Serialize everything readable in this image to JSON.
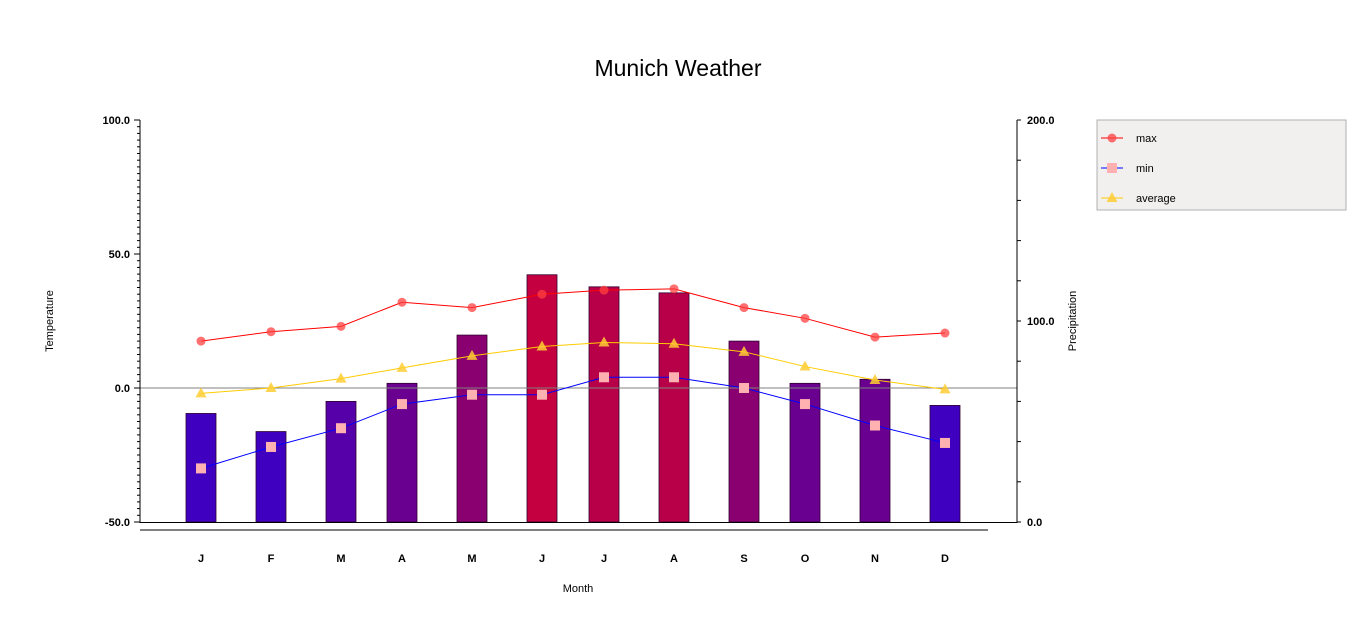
{
  "chart_data": {
    "type": "bar",
    "title": "Munich Weather",
    "xlabel": "Month",
    "ylabel": "Temperature",
    "y2label": "Precipitation",
    "categories": [
      "J",
      "F",
      "M",
      "A",
      "M",
      "J",
      "J",
      "A",
      "S",
      "O",
      "N",
      "D"
    ],
    "ylim": [
      -50,
      100
    ],
    "y2lim": [
      0,
      200
    ],
    "y_ticks": [
      "100.0",
      "50.0",
      "0.0",
      "-50.0"
    ],
    "y2_ticks": [
      "200.0",
      "100.0",
      "0.0"
    ],
    "zero_line": true,
    "legend_position": "right",
    "bars": {
      "axis": "secondary",
      "values": [
        54,
        45,
        60,
        69,
        93,
        123,
        117,
        114,
        90,
        69,
        71,
        58
      ],
      "colors": [
        "#3f00c0",
        "#3f00c0",
        "#5500a8",
        "#6a0090",
        "#8a0070",
        "#c40040",
        "#b80048",
        "#b80048",
        "#8a0070",
        "#6a0090",
        "#6a0090",
        "#3f00c0"
      ]
    },
    "series": [
      {
        "name": "max",
        "color": "#ff0000",
        "marker": "circle",
        "values": [
          17.5,
          21,
          23,
          32,
          30,
          35,
          36.5,
          37,
          30,
          26,
          19,
          20.5
        ]
      },
      {
        "name": "min",
        "color": "#0000ff",
        "marker": "square",
        "values": [
          -30,
          -22,
          -15,
          -6,
          -2.5,
          -2.5,
          4,
          4,
          0,
          -6,
          -14,
          -20.5
        ]
      },
      {
        "name": "average",
        "color": "#ffcc00",
        "marker": "triangle",
        "values": [
          -2,
          0,
          3.5,
          7.5,
          12,
          15.5,
          17,
          16.5,
          13.5,
          8,
          3,
          -0.5
        ]
      }
    ]
  }
}
